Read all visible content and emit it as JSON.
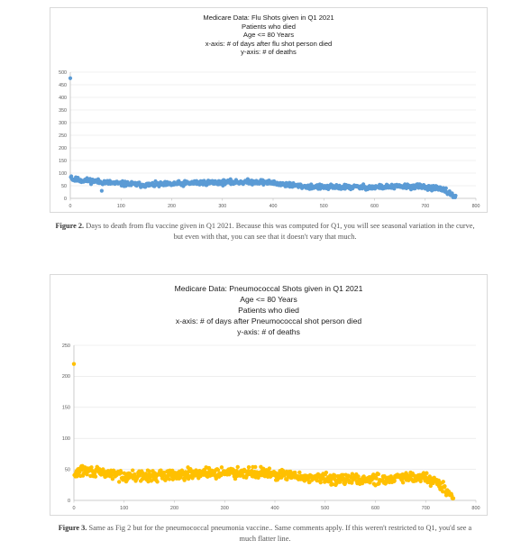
{
  "figure1": {
    "title_lines": [
      "Medicare Data:  Flu Shots given in Q1 2021",
      "Patients who died",
      "Age <= 80 Years",
      "x-axis: # of days after flu shot person died",
      "y-axis: # of deaths"
    ],
    "caption_label": "Figure 2.",
    "caption_text": " Days to death from flu vaccine given in Q1 2021. Because this was computed for Q1, you will see seasonal variation in the curve, but even with that, you can see that it doesn't vary that much."
  },
  "figure2": {
    "title_lines": [
      "Medicare Data:  Pneumococcal Shots given in Q1 2021",
      "Age <= 80 Years",
      "Patients who died",
      "x-axis: # of days after Pneumococcal shot person died",
      "y-axis: # of deaths"
    ],
    "caption_label": "Figure 3.",
    "caption_text": " Same as Fig 2 but for the pneumococcal pneumonia vaccine.. Same comments apply. If this weren't restricted to Q1, you'd see a much flatter line."
  },
  "chart_data": [
    {
      "type": "scatter",
      "title": "Medicare Data:  Flu Shots given in Q1 2021",
      "xlabel": "# of days after flu shot person died",
      "ylabel": "# of deaths",
      "xlim": [
        0,
        800
      ],
      "ylim": [
        0,
        500
      ],
      "xticks": [
        0,
        100,
        200,
        300,
        400,
        500,
        600,
        700,
        800
      ],
      "yticks": [
        0,
        50,
        100,
        150,
        200,
        250,
        300,
        350,
        400,
        450,
        500
      ],
      "marker_color": "#5b9bd5",
      "grid": "horizontal",
      "outliers": [
        {
          "x": 0,
          "y": 476
        },
        {
          "x": 62,
          "y": 30
        }
      ],
      "profile": [
        [
          1,
          90
        ],
        [
          5,
          75
        ],
        [
          20,
          72
        ],
        [
          40,
          70
        ],
        [
          60,
          65
        ],
        [
          100,
          58
        ],
        [
          150,
          53
        ],
        [
          200,
          56
        ],
        [
          250,
          62
        ],
        [
          300,
          63
        ],
        [
          350,
          65
        ],
        [
          380,
          65
        ],
        [
          420,
          56
        ],
        [
          460,
          48
        ],
        [
          500,
          44
        ],
        [
          550,
          45
        ],
        [
          600,
          44
        ],
        [
          650,
          47
        ],
        [
          690,
          47
        ],
        [
          720,
          40
        ],
        [
          740,
          30
        ],
        [
          752,
          15
        ],
        [
          760,
          5
        ]
      ],
      "noise": 7
    },
    {
      "type": "scatter",
      "title": "Medicare Data:  Pneumococcal Shots given in Q1 2021",
      "xlabel": "# of days after Pneumococcal shot person died",
      "ylabel": "# of deaths",
      "xlim": [
        0,
        800
      ],
      "ylim": [
        0,
        250
      ],
      "xticks": [
        0,
        100,
        200,
        300,
        400,
        500,
        600,
        700,
        800
      ],
      "yticks": [
        0,
        50,
        100,
        150,
        200,
        250
      ],
      "marker_color": "#ffc000",
      "grid": "horizontal",
      "outliers": [
        {
          "x": 0,
          "y": 220
        }
      ],
      "profile": [
        [
          1,
          38
        ],
        [
          10,
          48
        ],
        [
          30,
          47
        ],
        [
          60,
          44
        ],
        [
          100,
          40
        ],
        [
          150,
          39
        ],
        [
          200,
          42
        ],
        [
          250,
          44
        ],
        [
          300,
          45
        ],
        [
          350,
          46
        ],
        [
          400,
          42
        ],
        [
          450,
          38
        ],
        [
          500,
          35
        ],
        [
          550,
          34
        ],
        [
          600,
          34
        ],
        [
          650,
          36
        ],
        [
          700,
          37
        ],
        [
          720,
          30
        ],
        [
          735,
          20
        ],
        [
          745,
          12
        ],
        [
          755,
          5
        ]
      ],
      "noise": 6
    }
  ]
}
